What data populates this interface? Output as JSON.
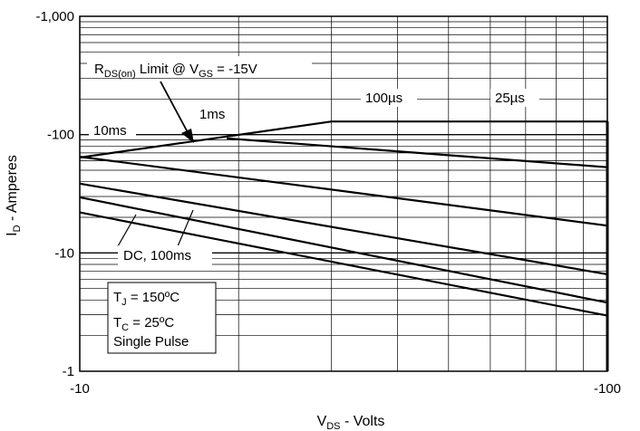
{
  "chart_data": {
    "type": "line",
    "title": "",
    "xlabel": "V",
    "xlabel_sub": "DS",
    "xlabel_rest": " - Volts",
    "ylabel": "I",
    "ylabel_sub": "D",
    "ylabel_rest": " - Amperes",
    "x_scale": "log",
    "y_scale": "log",
    "xlim": [
      -10,
      -100
    ],
    "ylim": [
      -1,
      -1000
    ],
    "x_tick_labels": [
      {
        "value": -10,
        "label": "-10"
      },
      {
        "value": -100,
        "label": "-100"
      }
    ],
    "y_tick_labels": [
      {
        "value": -1,
        "label": "-1"
      },
      {
        "value": -10,
        "label": "-10"
      },
      {
        "value": -100,
        "label": "-100"
      },
      {
        "value": -1000,
        "label": "-1,000"
      }
    ],
    "grid": true,
    "series": [
      {
        "name": "RDS(on) Limit @ VGS = -15V",
        "points": [
          [
            -10,
            -64
          ],
          [
            -30,
            -129
          ]
        ]
      },
      {
        "name": "100µs",
        "points": [
          [
            -30,
            -129
          ],
          [
            -100,
            -129
          ]
        ]
      },
      {
        "name": "25µs",
        "points": [
          [
            -100,
            -129
          ],
          [
            -100,
            -1
          ]
        ]
      },
      {
        "points": [
          [
            -19,
            -93
          ],
          [
            -100,
            -53
          ]
        ]
      },
      {
        "name": "10ms",
        "points": [
          [
            -10,
            -65
          ],
          [
            -100,
            -17
          ]
        ]
      },
      {
        "points": [
          [
            -10,
            -38.5
          ],
          [
            -100,
            -6.6
          ]
        ]
      },
      {
        "name": "DC, 100ms",
        "points": [
          [
            -10,
            -29.5
          ],
          [
            -100,
            -3.8
          ]
        ]
      },
      {
        "points": [
          [
            -10,
            -22
          ],
          [
            -100,
            -2.95
          ]
        ]
      }
    ],
    "annotations": {
      "rds_main": "R",
      "rds_sub": "DS(on)",
      "rds_mid": " Limit @ V",
      "rds_sub2": "GS",
      "rds_end": " = -15V",
      "label_100us": "100µs",
      "label_25us": "25µs",
      "label_1ms": "1ms",
      "label_10ms": "10ms",
      "label_dc": "DC, 100ms"
    },
    "conditions": {
      "tj_main": "T",
      "tj_sub": "J",
      "tj_rest": " = 150ºC",
      "tc_main": "T",
      "tc_sub": "C",
      "tc_rest": " = 25ºC",
      "pulse": "Single Pulse"
    }
  }
}
